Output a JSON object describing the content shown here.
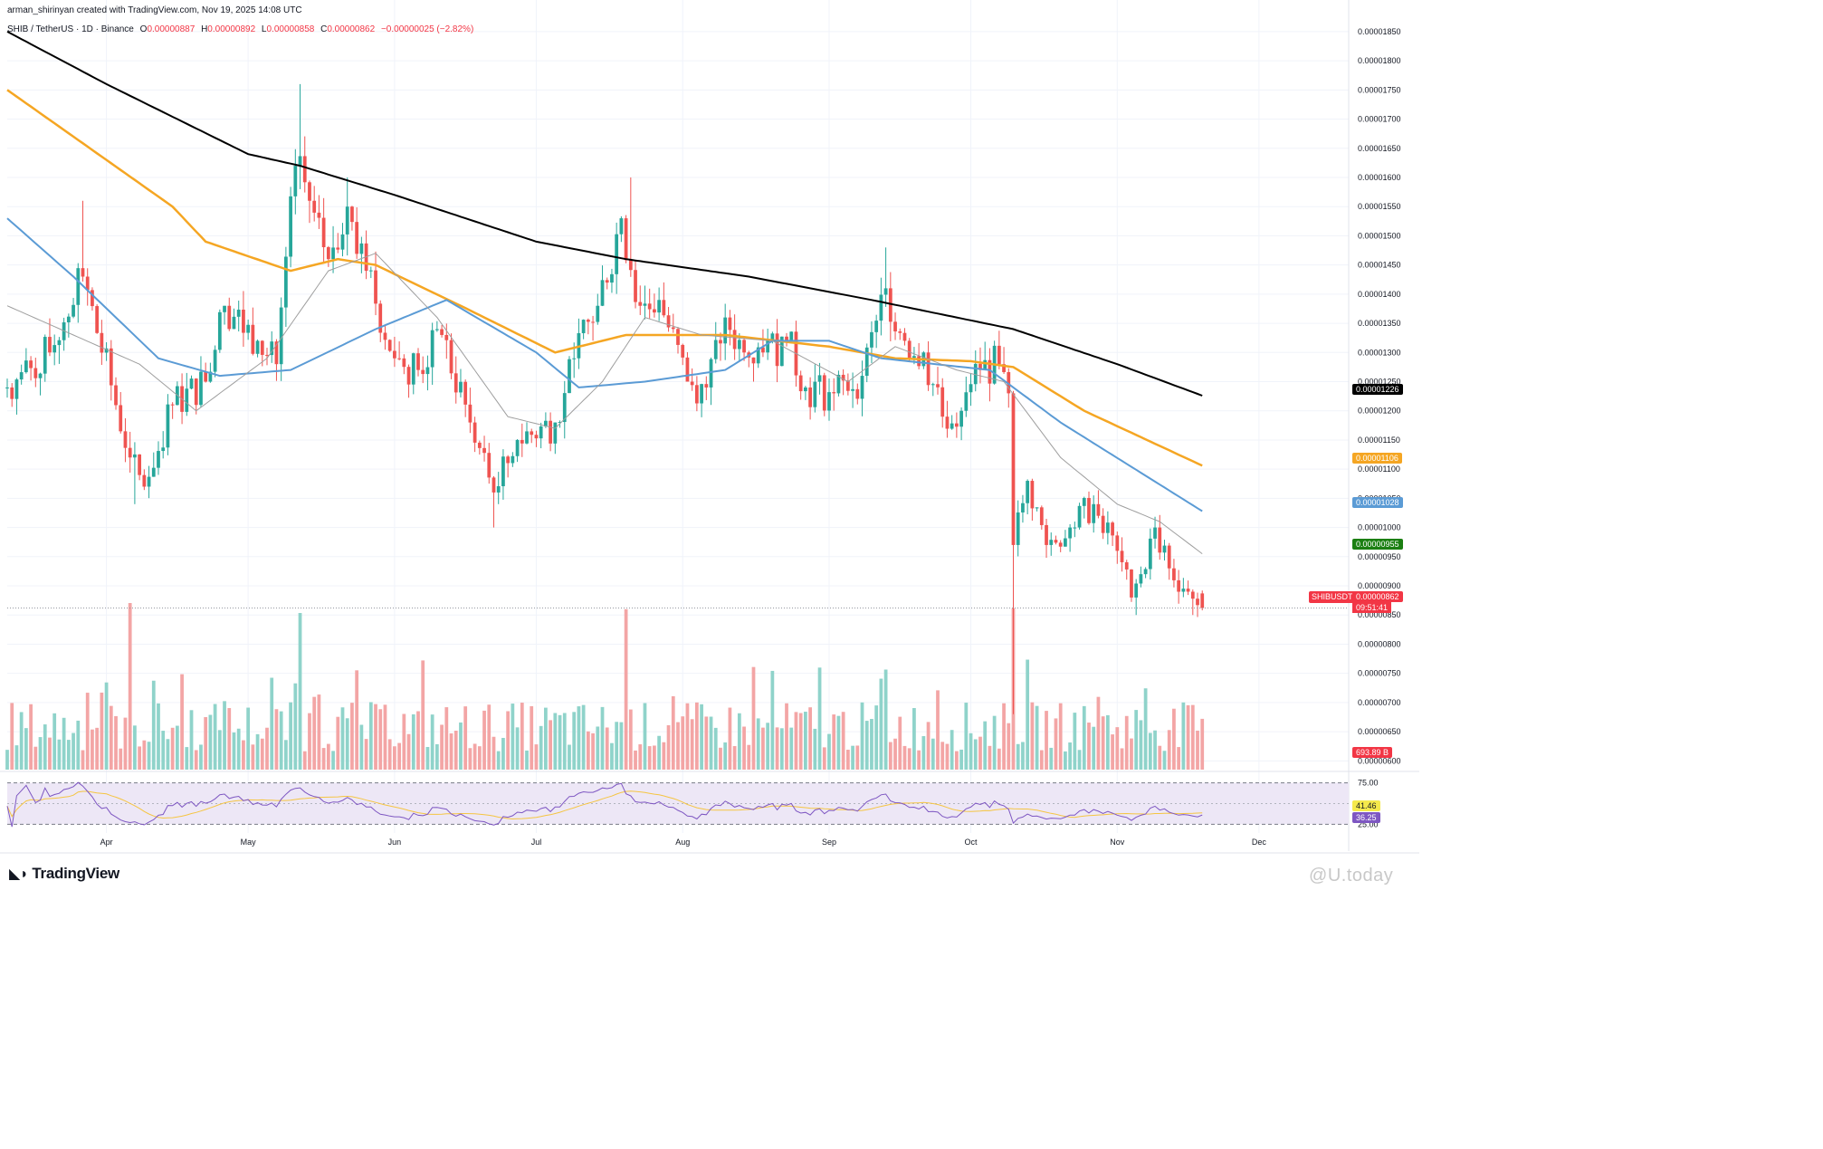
{
  "header": {
    "credit": "arman_shirinyan created with TradingView.com, Nov 19, 2025 14:08 UTC",
    "symbol": "SHIB / TetherUS · 1D · Binance",
    "ohlc": {
      "o_label": "O",
      "o": "0.00000887",
      "h_label": "H",
      "h": "0.00000892",
      "l_label": "L",
      "l": "0.00000858",
      "c_label": "C",
      "c": "0.00000862",
      "change": "−0.00000025 (−2.82%)"
    }
  },
  "footer": {
    "logo": "TradingView",
    "watermark": "U.today"
  },
  "colors": {
    "up": "#26a69a",
    "down": "#ef5350",
    "up_volume": "#8fd3ca",
    "down_volume": "#f3a5a5",
    "ma200": "#000000",
    "ma100": "#f5a623",
    "ma50": "#5b9bd5",
    "ma20": "#9e9e9e",
    "rsi": "#7e57c2",
    "rsi_ma": "#f5c542",
    "rsi_band": "#ede7f6",
    "grid": "#f0f3fa"
  },
  "badges": {
    "ma200": "0.00001226",
    "ma100": "0.00001106",
    "ma50": "0.00001028",
    "ma20": "0.00000955",
    "last": "0.00000862",
    "symbol_tag": "SHIBUSDT",
    "countdown": "09:51:41",
    "volume": "693.89 B",
    "rsi_ma": "41.46",
    "rsi": "36.25"
  },
  "chart_data": {
    "type": "candlestick",
    "symbol": "SHIB / TetherUS",
    "interval": "1D",
    "exchange": "Binance",
    "x_labels": [
      "Apr",
      "May",
      "Jun",
      "Jul",
      "Aug",
      "Sep",
      "Oct",
      "Nov",
      "Dec"
    ],
    "x_range": [
      "2025-03-11",
      "2025-12-20"
    ],
    "y_ticks": [
      "0.00001850",
      "0.00001800",
      "0.00001750",
      "0.00001700",
      "0.00001650",
      "0.00001600",
      "0.00001550",
      "0.00001500",
      "0.00001450",
      "0.00001400",
      "0.00001350",
      "0.00001300",
      "0.00001250",
      "0.00001200",
      "0.00001150",
      "0.00001100",
      "0.00001050",
      "0.00001000",
      "0.00000950",
      "0.00000900",
      "0.00000850",
      "0.00000800",
      "0.00000750",
      "0.00000700",
      "0.00000650",
      "0.00000600"
    ],
    "y_range": [
      5.85e-06,
      1.87e-05
    ],
    "close_anchors": [
      {
        "date": "2025-03-11",
        "close": 1.24e-05
      },
      {
        "date": "2025-03-20",
        "close": 1.3e-05
      },
      {
        "date": "2025-03-27",
        "close": 1.43e-05
      },
      {
        "date": "2025-04-06",
        "close": 1.12e-05
      },
      {
        "date": "2025-04-09",
        "close": 1.07e-05
      },
      {
        "date": "2025-04-15",
        "close": 1.21e-05
      },
      {
        "date": "2025-04-22",
        "close": 1.25e-05
      },
      {
        "date": "2025-04-26",
        "close": 1.38e-05
      },
      {
        "date": "2025-05-03",
        "close": 1.32e-05
      },
      {
        "date": "2025-05-07",
        "close": 1.28e-05
      },
      {
        "date": "2025-05-11",
        "close": 1.62e-05
      },
      {
        "date": "2025-05-14",
        "close": 1.56e-05
      },
      {
        "date": "2025-05-18",
        "close": 1.46e-05
      },
      {
        "date": "2025-05-22",
        "close": 1.55e-05
      },
      {
        "date": "2025-05-26",
        "close": 1.44e-05
      },
      {
        "date": "2025-06-01",
        "close": 1.29e-05
      },
      {
        "date": "2025-06-06",
        "close": 1.27e-05
      },
      {
        "date": "2025-06-11",
        "close": 1.33e-05
      },
      {
        "date": "2025-06-17",
        "close": 1.18e-05
      },
      {
        "date": "2025-06-22",
        "close": 1.06e-05
      },
      {
        "date": "2025-06-27",
        "close": 1.15e-05
      },
      {
        "date": "2025-07-05",
        "close": 1.18e-05
      },
      {
        "date": "2025-07-09",
        "close": 1.29e-05
      },
      {
        "date": "2025-07-14",
        "close": 1.38e-05
      },
      {
        "date": "2025-07-19",
        "close": 1.53e-05
      },
      {
        "date": "2025-07-23",
        "close": 1.38e-05
      },
      {
        "date": "2025-07-27",
        "close": 1.39e-05
      },
      {
        "date": "2025-08-02",
        "close": 1.25e-05
      },
      {
        "date": "2025-08-06",
        "close": 1.24e-05
      },
      {
        "date": "2025-08-10",
        "close": 1.36e-05
      },
      {
        "date": "2025-08-14",
        "close": 1.3e-05
      },
      {
        "date": "2025-08-18",
        "close": 1.3e-05
      },
      {
        "date": "2025-08-23",
        "close": 1.32e-05
      },
      {
        "date": "2025-08-27",
        "close": 1.24e-05
      },
      {
        "date": "2025-09-02",
        "close": 1.23e-05
      },
      {
        "date": "2025-09-08",
        "close": 1.26e-05
      },
      {
        "date": "2025-09-13",
        "close": 1.41e-05
      },
      {
        "date": "2025-09-17",
        "close": 1.32e-05
      },
      {
        "date": "2025-09-21",
        "close": 1.3e-05
      },
      {
        "date": "2025-09-25",
        "close": 1.19e-05
      },
      {
        "date": "2025-09-29",
        "close": 1.2e-05
      },
      {
        "date": "2025-10-03",
        "close": 1.27e-05
      },
      {
        "date": "2025-10-07",
        "close": 1.28e-05
      },
      {
        "date": "2025-10-09",
        "close": 1.23e-05
      },
      {
        "date": "2025-10-10",
        "close": 9.7e-06
      },
      {
        "date": "2025-10-13",
        "close": 1.08e-05
      },
      {
        "date": "2025-10-17",
        "close": 9.7e-06
      },
      {
        "date": "2025-10-22",
        "close": 1e-05
      },
      {
        "date": "2025-10-27",
        "close": 1.04e-05
      },
      {
        "date": "2025-11-01",
        "close": 9.6e-06
      },
      {
        "date": "2025-11-04",
        "close": 8.8e-06
      },
      {
        "date": "2025-11-06",
        "close": 9.2e-06
      },
      {
        "date": "2025-11-09",
        "close": 1e-05
      },
      {
        "date": "2025-11-12",
        "close": 9.3e-06
      },
      {
        "date": "2025-11-16",
        "close": 8.9e-06
      },
      {
        "date": "2025-11-19",
        "close": 8.62e-06
      }
    ],
    "extremes": [
      {
        "date": "2025-03-27",
        "high": 1.56e-05
      },
      {
        "date": "2025-04-07",
        "low": 1.04e-05
      },
      {
        "date": "2025-05-12",
        "high": 1.76e-05
      },
      {
        "date": "2025-05-22",
        "high": 1.6e-05
      },
      {
        "date": "2025-06-22",
        "low": 1e-05
      },
      {
        "date": "2025-07-21",
        "high": 1.6e-05
      },
      {
        "date": "2025-09-13",
        "high": 1.48e-05
      },
      {
        "date": "2025-10-10",
        "low": 6.8e-06
      },
      {
        "date": "2025-11-05",
        "low": 8.5e-06
      },
      {
        "date": "2025-11-17",
        "low": 8.5e-06
      }
    ],
    "moving_averages": [
      {
        "name": "MA 200",
        "last": 1.226e-05,
        "points": [
          [
            "2025-03-11",
            1.85e-05
          ],
          [
            "2025-04-01",
            1.76e-05
          ],
          [
            "2025-05-01",
            1.64e-05
          ],
          [
            "2025-05-12",
            1.62e-05
          ],
          [
            "2025-06-01",
            1.57e-05
          ],
          [
            "2025-07-01",
            1.49e-05
          ],
          [
            "2025-07-20",
            1.46e-05
          ],
          [
            "2025-08-15",
            1.43e-05
          ],
          [
            "2025-09-10",
            1.39e-05
          ],
          [
            "2025-10-01",
            1.355e-05
          ],
          [
            "2025-10-10",
            1.34e-05
          ],
          [
            "2025-11-01",
            1.28e-05
          ],
          [
            "2025-11-19",
            1.226e-05
          ]
        ]
      },
      {
        "name": "MA 100",
        "last": 1.106e-05,
        "points": [
          [
            "2025-03-11",
            1.75e-05
          ],
          [
            "2025-03-25",
            1.67e-05
          ],
          [
            "2025-04-15",
            1.55e-05
          ],
          [
            "2025-04-22",
            1.49e-05
          ],
          [
            "2025-05-10",
            1.44e-05
          ],
          [
            "2025-05-20",
            1.46e-05
          ],
          [
            "2025-05-28",
            1.45e-05
          ],
          [
            "2025-06-15",
            1.38e-05
          ],
          [
            "2025-07-05",
            1.3e-05
          ],
          [
            "2025-07-20",
            1.33e-05
          ],
          [
            "2025-08-10",
            1.33e-05
          ],
          [
            "2025-09-01",
            1.31e-05
          ],
          [
            "2025-09-15",
            1.29e-05
          ],
          [
            "2025-10-01",
            1.285e-05
          ],
          [
            "2025-10-10",
            1.275e-05
          ],
          [
            "2025-10-25",
            1.2e-05
          ],
          [
            "2025-11-19",
            1.106e-05
          ]
        ]
      },
      {
        "name": "MA 50",
        "last": 1.028e-05,
        "points": [
          [
            "2025-03-11",
            1.53e-05
          ],
          [
            "2025-03-25",
            1.43e-05
          ],
          [
            "2025-04-12",
            1.29e-05
          ],
          [
            "2025-04-25",
            1.26e-05
          ],
          [
            "2025-05-10",
            1.27e-05
          ],
          [
            "2025-05-28",
            1.34e-05
          ],
          [
            "2025-06-12",
            1.39e-05
          ],
          [
            "2025-07-01",
            1.3e-05
          ],
          [
            "2025-07-10",
            1.24e-05
          ],
          [
            "2025-07-24",
            1.25e-05
          ],
          [
            "2025-08-10",
            1.27e-05
          ],
          [
            "2025-08-20",
            1.32e-05
          ],
          [
            "2025-09-01",
            1.32e-05
          ],
          [
            "2025-09-12",
            1.29e-05
          ],
          [
            "2025-10-05",
            1.27e-05
          ],
          [
            "2025-10-20",
            1.18e-05
          ],
          [
            "2025-11-19",
            1.028e-05
          ]
        ]
      },
      {
        "name": "MA 20",
        "last": 9.55e-06,
        "points": [
          [
            "2025-03-11",
            1.38e-05
          ],
          [
            "2025-03-25",
            1.33e-05
          ],
          [
            "2025-04-08",
            1.28e-05
          ],
          [
            "2025-04-20",
            1.2e-05
          ],
          [
            "2025-05-05",
            1.29e-05
          ],
          [
            "2025-05-18",
            1.44e-05
          ],
          [
            "2025-05-28",
            1.47e-05
          ],
          [
            "2025-06-10",
            1.36e-05
          ],
          [
            "2025-06-25",
            1.19e-05
          ],
          [
            "2025-07-05",
            1.17e-05
          ],
          [
            "2025-07-15",
            1.25e-05
          ],
          [
            "2025-07-24",
            1.36e-05
          ],
          [
            "2025-08-05",
            1.33e-05
          ],
          [
            "2025-08-20",
            1.32e-05
          ],
          [
            "2025-09-05",
            1.25e-05
          ],
          [
            "2025-09-15",
            1.31e-05
          ],
          [
            "2025-09-28",
            1.27e-05
          ],
          [
            "2025-10-08",
            1.25e-05
          ],
          [
            "2025-10-20",
            1.12e-05
          ],
          [
            "2025-11-01",
            1.04e-05
          ],
          [
            "2025-11-10",
            1.01e-05
          ],
          [
            "2025-11-19",
            9.55e-06
          ]
        ]
      }
    ],
    "volume_last": "693.89 B",
    "volume_spikes": [
      {
        "date": "2025-04-06",
        "up": true
      },
      {
        "date": "2025-05-12",
        "up": false
      },
      {
        "date": "2025-07-20",
        "up": true
      },
      {
        "date": "2025-10-10",
        "up": false
      }
    ],
    "rsi": {
      "levels": [
        75,
        25
      ],
      "last": 36.25,
      "ma_last": 41.46,
      "y_ticks": [
        "75.00",
        "25.00"
      ]
    }
  }
}
